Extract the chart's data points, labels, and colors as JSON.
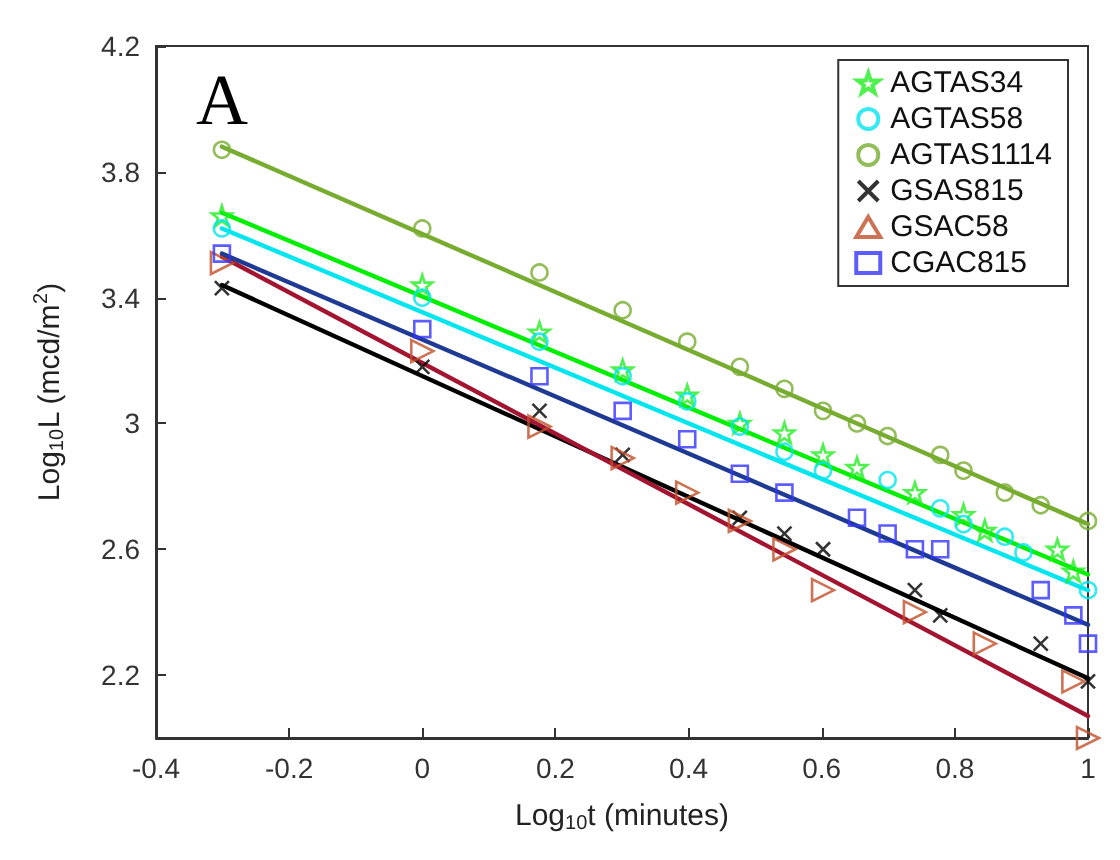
{
  "chart_data": {
    "type": "scatter",
    "xlabel": "Log$_{10}$t (minutes)",
    "ylabel": "Log$_{10}$L (mcd/m$^{2}$)",
    "annotations": [
      "A"
    ],
    "xlim": [
      -0.4,
      1
    ],
    "xticks": [
      -0.4,
      -0.2,
      0,
      0.2,
      0.4,
      0.6,
      0.8,
      1
    ],
    "ylim": [
      2.0,
      4.2
    ],
    "yticks": [
      2.2,
      2.6,
      3,
      3.4,
      3.8,
      4.2
    ],
    "grid": false,
    "legend": "top right",
    "series": [
      {
        "name": "AGTAS34",
        "color": "#22ee22",
        "marker": "star",
        "x": [
          -0.301,
          0,
          0.176,
          0.301,
          0.398,
          0.477,
          0.544,
          0.602,
          0.653,
          0.74,
          0.813,
          0.845,
          0.954,
          0.978
        ],
        "values": [
          3.66,
          3.44,
          3.29,
          3.17,
          3.09,
          3.0,
          2.97,
          2.9,
          2.86,
          2.78,
          2.71,
          2.66,
          2.6,
          2.53
        ]
      },
      {
        "name": "AGTAS58",
        "color": "#00e5ee",
        "marker": "circle",
        "x": [
          -0.301,
          0,
          0.176,
          0.301,
          0.398,
          0.477,
          0.544,
          0.602,
          0.699,
          0.778,
          0.813,
          0.875,
          0.903,
          1.0
        ],
        "values": [
          3.62,
          3.4,
          3.26,
          3.15,
          3.07,
          2.99,
          2.91,
          2.85,
          2.82,
          2.73,
          2.68,
          2.64,
          2.59,
          2.47
        ]
      },
      {
        "name": "AGTAS1114",
        "color": "#77ac30",
        "marker": "circle",
        "x": [
          -0.301,
          0,
          0.176,
          0.301,
          0.398,
          0.477,
          0.544,
          0.602,
          0.653,
          0.699,
          0.778,
          0.813,
          0.875,
          0.929,
          1.0
        ],
        "values": [
          3.87,
          3.62,
          3.48,
          3.36,
          3.26,
          3.18,
          3.11,
          3.04,
          3.0,
          2.96,
          2.9,
          2.85,
          2.78,
          2.74,
          2.69
        ]
      },
      {
        "name": "GSAS815",
        "color": "#000000",
        "marker": "cross",
        "x": [
          -0.301,
          0,
          0.176,
          0.301,
          0.477,
          0.544,
          0.602,
          0.74,
          0.778,
          0.929,
          1.0
        ],
        "values": [
          3.43,
          3.18,
          3.04,
          2.9,
          2.7,
          2.65,
          2.6,
          2.47,
          2.39,
          2.3,
          2.18
        ]
      },
      {
        "name": "GSAC58",
        "color": "#c0502a",
        "marker": "triangle",
        "x": [
          -0.301,
          0,
          0.176,
          0.301,
          0.398,
          0.477,
          0.544,
          0.602,
          0.74,
          0.845,
          0.978,
          1.0
        ],
        "values": [
          3.51,
          3.23,
          2.99,
          2.89,
          2.78,
          2.69,
          2.6,
          2.47,
          2.4,
          2.3,
          2.18,
          2.0
        ]
      },
      {
        "name": "CGAC815",
        "color": "#3333ff",
        "marker": "square",
        "x": [
          -0.301,
          0,
          0.176,
          0.301,
          0.398,
          0.477,
          0.544,
          0.653,
          0.699,
          0.74,
          0.778,
          0.929,
          0.978,
          1.0
        ],
        "values": [
          3.54,
          3.3,
          3.15,
          3.04,
          2.95,
          2.84,
          2.78,
          2.7,
          2.65,
          2.6,
          2.6,
          2.47,
          2.39,
          2.3
        ]
      },
      {
        "type": "line",
        "color": "#00ee00",
        "marker": "none",
        "x": [
          -0.301,
          1.0
        ],
        "values": [
          3.67,
          2.52
        ]
      },
      {
        "type": "line",
        "color": "#00e5ee",
        "marker": "none",
        "x": [
          -0.301,
          1.0
        ],
        "values": [
          3.62,
          2.47
        ]
      },
      {
        "type": "line",
        "color": "#77ac30",
        "marker": "none",
        "x": [
          -0.301,
          1.0
        ],
        "values": [
          3.88,
          2.68
        ]
      },
      {
        "type": "line",
        "color": "#000000",
        "marker": "none",
        "x": [
          -0.301,
          1.0
        ],
        "values": [
          3.44,
          2.19
        ]
      },
      {
        "type": "line",
        "color": "#a2142f",
        "marker": "none",
        "x": [
          -0.301,
          1.0
        ],
        "values": [
          3.53,
          2.07
        ]
      },
      {
        "type": "line",
        "color": "#1f3a93",
        "marker": "none",
        "x": [
          -0.301,
          1.0
        ],
        "values": [
          3.54,
          2.36
        ]
      }
    ]
  }
}
